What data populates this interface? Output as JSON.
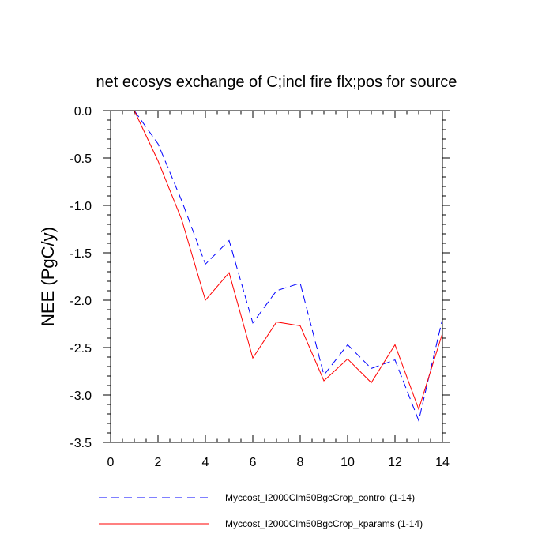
{
  "chart_data": {
    "type": "line",
    "title": "net ecosys exchange of C;incl fire flx;pos for source",
    "ylabel": "NEE  (PgC/y)",
    "xlabel": "",
    "xlim": [
      0,
      14
    ],
    "ylim": [
      -3.5,
      0.0
    ],
    "x_major_ticks": [
      0,
      2,
      4,
      6,
      8,
      10,
      12,
      14
    ],
    "x_tick_labels": [
      "0",
      "2",
      "4",
      "6",
      "8",
      "10",
      "12",
      "14"
    ],
    "y_major_ticks": [
      0.0,
      -0.5,
      -1.0,
      -1.5,
      -2.0,
      -2.5,
      -3.0,
      -3.5
    ],
    "y_tick_labels": [
      "0.0",
      "-0.5",
      "-1.0",
      "-1.5",
      "-2.0",
      "-2.5",
      "-3.0",
      "-3.5"
    ],
    "grid": false,
    "legend_position": "bottom",
    "x": [
      1,
      2,
      3,
      4,
      5,
      6,
      7,
      8,
      9,
      10,
      11,
      12,
      13,
      14
    ],
    "series": [
      {
        "name": "Myccost_I2000Clm50BgcCrop_control (1-14)",
        "color": "#0000ff",
        "dash": "dashed",
        "values": [
          0.0,
          -0.35,
          -0.95,
          -1.62,
          -1.37,
          -2.24,
          -1.9,
          -1.82,
          -2.79,
          -2.47,
          -2.72,
          -2.63,
          -3.27,
          -2.2
        ]
      },
      {
        "name": "Myccost_I2000Clm50BgcCrop_kparams (1-14)",
        "color": "#ff0000",
        "dash": "solid",
        "values": [
          0.0,
          -0.53,
          -1.15,
          -2.0,
          -1.71,
          -2.61,
          -2.23,
          -2.27,
          -2.85,
          -2.62,
          -2.87,
          -2.47,
          -3.15,
          -2.35
        ]
      }
    ]
  }
}
